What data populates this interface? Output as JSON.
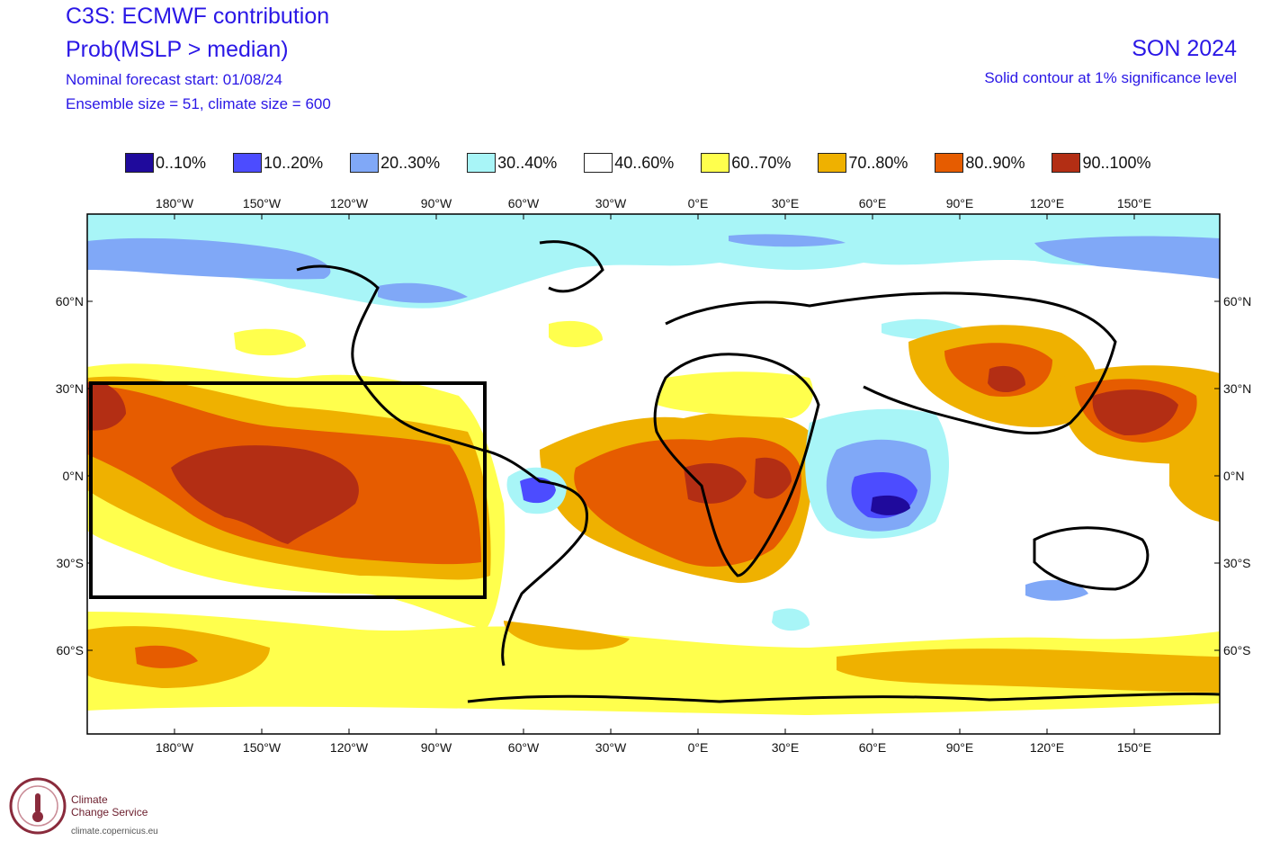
{
  "header": {
    "title": "C3S: ECMWF contribution",
    "variable": "Prob(MSLP > median)",
    "forecast_start": "Nominal forecast start: 01/08/24",
    "ensemble": "Ensemble size = 51, climate size = 600",
    "season": "SON 2024",
    "significance": "Solid contour at 1% significance level"
  },
  "legend": [
    {
      "label": "0..10%",
      "color": "#1f0a9c"
    },
    {
      "label": "10..20%",
      "color": "#4c4cff"
    },
    {
      "label": "20..30%",
      "color": "#80a8f7"
    },
    {
      "label": "30..40%",
      "color": "#a8f5f7"
    },
    {
      "label": "40..60%",
      "color": "#ffffff"
    },
    {
      "label": "60..70%",
      "color": "#ffff4d"
    },
    {
      "label": "70..80%",
      "color": "#efb100"
    },
    {
      "label": "80..90%",
      "color": "#e65c00"
    },
    {
      "label": "90..100%",
      "color": "#b32e14"
    }
  ],
  "axes": {
    "lon_labels": [
      "180°W",
      "150°W",
      "120°W",
      "90°W",
      "60°W",
      "30°W",
      "0°E",
      "30°E",
      "60°E",
      "90°E",
      "120°E",
      "150°E"
    ],
    "lat_labels": [
      "60°N",
      "30°N",
      "0°N",
      "30°S",
      "60°S"
    ]
  },
  "logo": {
    "line1": "Climate",
    "line2": "Change Service",
    "url": "climate.copernicus.eu"
  }
}
